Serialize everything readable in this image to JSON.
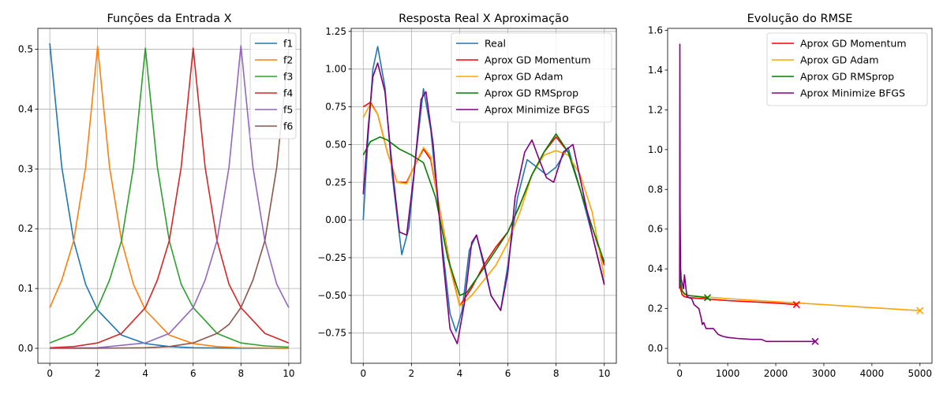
{
  "chart_data": [
    {
      "type": "line",
      "title": "Funções da Entrada X",
      "xlim": [
        -0.5,
        10.5
      ],
      "ylim": [
        -0.025,
        0.535
      ],
      "grid": true,
      "legend_position": "upper-right",
      "xticks": [
        0,
        2,
        4,
        6,
        8,
        10
      ],
      "xtick_labels": [
        "0",
        "2",
        "4",
        "6",
        "8",
        "10"
      ],
      "yticks": [
        0.0,
        0.1,
        0.2,
        0.3,
        0.4,
        0.5
      ],
      "ytick_labels": [
        "0.0",
        "0.1",
        "0.2",
        "0.3",
        "0.4",
        "0.5"
      ],
      "series": [
        {
          "name": "f1",
          "color": "#1f77b4",
          "x": [
            0,
            0.5,
            1,
            1.5,
            2,
            3,
            4,
            5,
            6,
            7,
            8,
            9,
            10
          ],
          "y": [
            0.51,
            0.303,
            0.18,
            0.107,
            0.064,
            0.022,
            0.008,
            0.003,
            0.001,
            0.0005,
            0.0002,
            0.0001,
            0.0
          ]
        },
        {
          "name": "f2",
          "color": "#ff7f0e",
          "x": [
            0,
            0.5,
            1,
            1.5,
            2,
            2.5,
            3,
            3.5,
            4,
            5,
            6,
            7,
            8,
            9,
            10
          ],
          "y": [
            0.068,
            0.114,
            0.18,
            0.303,
            0.505,
            0.303,
            0.18,
            0.107,
            0.064,
            0.022,
            0.008,
            0.003,
            0.001,
            0.0005,
            0.0002
          ]
        },
        {
          "name": "f3",
          "color": "#2ca02c",
          "x": [
            0,
            1,
            2,
            2.5,
            3,
            3.5,
            4,
            4.5,
            5,
            5.5,
            6,
            7,
            8,
            9,
            10
          ],
          "y": [
            0.009,
            0.025,
            0.068,
            0.114,
            0.18,
            0.303,
            0.502,
            0.303,
            0.18,
            0.107,
            0.068,
            0.025,
            0.009,
            0.004,
            0.002
          ]
        },
        {
          "name": "f4",
          "color": "#d62728",
          "x": [
            0,
            1,
            2,
            3,
            4,
            4.5,
            5,
            5.5,
            6,
            6.5,
            7,
            7.5,
            8,
            9,
            10
          ],
          "y": [
            0.001,
            0.003,
            0.009,
            0.025,
            0.068,
            0.114,
            0.18,
            0.303,
            0.502,
            0.303,
            0.18,
            0.107,
            0.068,
            0.025,
            0.009
          ]
        },
        {
          "name": "f5",
          "color": "#9467bd",
          "x": [
            0,
            2,
            4,
            5,
            6,
            6.5,
            7,
            7.5,
            8,
            8.5,
            9,
            9.5,
            10
          ],
          "y": [
            0.0002,
            0.001,
            0.009,
            0.025,
            0.068,
            0.114,
            0.18,
            0.303,
            0.506,
            0.303,
            0.18,
            0.107,
            0.068
          ]
        },
        {
          "name": "f6",
          "color": "#8c564b",
          "x": [
            0,
            2,
            4,
            5,
            6,
            7,
            7.5,
            8,
            8.5,
            9,
            9.5,
            10
          ],
          "y": [
            0.0,
            0.0002,
            0.001,
            0.003,
            0.009,
            0.025,
            0.04,
            0.068,
            0.114,
            0.18,
            0.303,
            0.5
          ]
        }
      ]
    },
    {
      "type": "line",
      "title": "Resposta Real X Aproximação",
      "xlim": [
        -0.5,
        10.5
      ],
      "ylim": [
        -0.95,
        1.27
      ],
      "grid": true,
      "legend_position": "upper-right",
      "xticks": [
        0,
        2,
        4,
        6,
        8,
        10
      ],
      "xtick_labels": [
        "0",
        "2",
        "4",
        "6",
        "8",
        "10"
      ],
      "yticks": [
        -0.75,
        -0.5,
        -0.25,
        0.0,
        0.25,
        0.5,
        0.75,
        1.0,
        1.25
      ],
      "ytick_labels": [
        "−0.75",
        "−0.50",
        "−0.25",
        "0.00",
        "0.25",
        "0.50",
        "0.75",
        "1.00",
        "1.25"
      ],
      "series": [
        {
          "name": "Real",
          "color": "#1f77b4",
          "x": [
            0,
            0.2,
            0.4,
            0.6,
            0.9,
            1.2,
            1.6,
            1.9,
            2.2,
            2.5,
            2.8,
            3.2,
            3.6,
            3.85,
            4.1,
            4.4,
            4.7,
            5.0,
            5.3,
            5.7,
            6.0,
            6.4,
            6.8,
            7.2,
            7.6,
            8.0,
            8.5,
            9.0,
            9.5,
            10
          ],
          "y": [
            0.0,
            0.55,
            1.0,
            1.15,
            0.88,
            0.3,
            -0.23,
            -0.05,
            0.45,
            0.87,
            0.6,
            -0.05,
            -0.62,
            -0.74,
            -0.6,
            -0.2,
            -0.1,
            -0.3,
            -0.5,
            -0.6,
            -0.3,
            0.15,
            0.4,
            0.35,
            0.3,
            0.35,
            0.48,
            0.2,
            -0.1,
            -0.42
          ]
        },
        {
          "name": "Aprox GD Momentum",
          "color": "#ff0000",
          "x": [
            0,
            0.3,
            0.6,
            1.0,
            1.4,
            1.8,
            2.1,
            2.5,
            2.8,
            3.2,
            3.6,
            4.0,
            4.5,
            5.0,
            5.5,
            6.0,
            6.5,
            7.0,
            7.5,
            8.0,
            8.5,
            9.0,
            9.5,
            10
          ],
          "y": [
            0.75,
            0.78,
            0.7,
            0.45,
            0.25,
            0.25,
            0.35,
            0.47,
            0.4,
            0.05,
            -0.3,
            -0.57,
            -0.45,
            -0.3,
            -0.18,
            -0.08,
            0.1,
            0.3,
            0.45,
            0.55,
            0.45,
            0.2,
            -0.05,
            -0.3
          ]
        },
        {
          "name": "Aprox GD Adam",
          "color": "#ffa500",
          "x": [
            0,
            0.3,
            0.6,
            1.0,
            1.4,
            1.8,
            2.1,
            2.5,
            2.8,
            3.2,
            3.6,
            4.0,
            4.5,
            5.0,
            5.5,
            6.0,
            6.5,
            7.0,
            7.5,
            8.0,
            8.5,
            9.0,
            9.5,
            10
          ],
          "y": [
            0.68,
            0.77,
            0.7,
            0.45,
            0.25,
            0.24,
            0.35,
            0.48,
            0.42,
            0.05,
            -0.32,
            -0.57,
            -0.5,
            -0.4,
            -0.3,
            -0.15,
            0.05,
            0.3,
            0.43,
            0.46,
            0.43,
            0.3,
            0.05,
            -0.38
          ]
        },
        {
          "name": "Aprox GD RMSprop",
          "color": "#008000",
          "x": [
            0,
            0.3,
            0.7,
            1.0,
            1.5,
            2.0,
            2.5,
            3.0,
            3.5,
            4.0,
            4.3,
            5.0,
            5.5,
            6.0,
            6.5,
            7.0,
            7.5,
            8.0,
            8.5,
            9.0,
            9.5,
            10
          ],
          "y": [
            0.43,
            0.52,
            0.55,
            0.53,
            0.47,
            0.43,
            0.38,
            0.15,
            -0.25,
            -0.5,
            -0.48,
            -0.32,
            -0.2,
            -0.08,
            0.1,
            0.3,
            0.45,
            0.57,
            0.45,
            0.2,
            -0.05,
            -0.28
          ]
        },
        {
          "name": "Aprox Minimize BFGS",
          "color": "#800080",
          "x": [
            0,
            0.2,
            0.4,
            0.6,
            0.9,
            1.2,
            1.5,
            1.8,
            2.1,
            2.4,
            2.6,
            2.9,
            3.3,
            3.6,
            3.9,
            4.2,
            4.5,
            4.7,
            5.0,
            5.3,
            5.7,
            6.0,
            6.3,
            6.7,
            7.0,
            7.3,
            7.6,
            7.9,
            8.3,
            8.7,
            9.1,
            9.5,
            10
          ],
          "y": [
            0.17,
            0.6,
            0.95,
            1.04,
            0.85,
            0.35,
            -0.08,
            -0.1,
            0.3,
            0.8,
            0.85,
            0.5,
            -0.25,
            -0.72,
            -0.82,
            -0.55,
            -0.15,
            -0.1,
            -0.28,
            -0.5,
            -0.6,
            -0.35,
            0.15,
            0.45,
            0.53,
            0.4,
            0.28,
            0.25,
            0.45,
            0.5,
            0.2,
            -0.1,
            -0.43
          ]
        }
      ]
    },
    {
      "type": "line",
      "title": "Evolução do RMSE",
      "xlim": [
        -250,
        5250
      ],
      "ylim": [
        -0.075,
        1.61
      ],
      "grid": false,
      "legend_position": "upper-right",
      "xticks": [
        0,
        1000,
        2000,
        3000,
        4000,
        5000
      ],
      "xtick_labels": [
        "0",
        "1000",
        "2000",
        "3000",
        "4000",
        "5000"
      ],
      "yticks": [
        0.0,
        0.2,
        0.4,
        0.6,
        0.8,
        1.0,
        1.2,
        1.4,
        1.6
      ],
      "ytick_labels": [
        "0.0",
        "0.2",
        "0.4",
        "0.6",
        "0.8",
        "1.0",
        "1.2",
        "1.4",
        "1.6"
      ],
      "series": [
        {
          "name": "Aprox GD Momentum",
          "color": "#ff0000",
          "x": [
            0,
            20,
            50,
            100,
            200,
            500,
            1000,
            2000,
            2430
          ],
          "y": [
            0.35,
            0.3,
            0.27,
            0.26,
            0.255,
            0.25,
            0.24,
            0.228,
            0.22
          ],
          "end_marker": {
            "x": 2430,
            "y": 0.22
          }
        },
        {
          "name": "Aprox GD Adam",
          "color": "#ffa500",
          "x": [
            0,
            20,
            50,
            100,
            200,
            500,
            1000,
            2000,
            3000,
            4000,
            5000
          ],
          "y": [
            0.4,
            0.33,
            0.29,
            0.27,
            0.265,
            0.26,
            0.25,
            0.235,
            0.22,
            0.205,
            0.19
          ],
          "end_marker": {
            "x": 5000,
            "y": 0.19
          }
        },
        {
          "name": "Aprox GD RMSprop",
          "color": "#008000",
          "x": [
            0,
            20,
            50,
            100,
            200,
            400,
            580
          ],
          "y": [
            0.42,
            0.33,
            0.29,
            0.275,
            0.265,
            0.26,
            0.255
          ],
          "end_marker": {
            "x": 580,
            "y": 0.255
          }
        },
        {
          "name": "Aprox Minimize BFGS",
          "color": "#800080",
          "x": [
            0,
            5,
            10,
            20,
            25,
            30,
            50,
            80,
            100,
            150,
            250,
            300,
            400,
            450,
            470,
            500,
            550,
            600,
            700,
            800,
            900,
            1000,
            1200,
            1500,
            1700,
            1800,
            2000,
            2500,
            2820
          ],
          "y": [
            0.3,
            1.53,
            0.7,
            0.4,
            0.38,
            0.35,
            0.33,
            0.3,
            0.37,
            0.26,
            0.25,
            0.22,
            0.2,
            0.15,
            0.12,
            0.13,
            0.1,
            0.1,
            0.1,
            0.07,
            0.06,
            0.055,
            0.05,
            0.045,
            0.045,
            0.035,
            0.035,
            0.035,
            0.035
          ],
          "end_marker": {
            "x": 2820,
            "y": 0.035
          }
        }
      ]
    }
  ]
}
